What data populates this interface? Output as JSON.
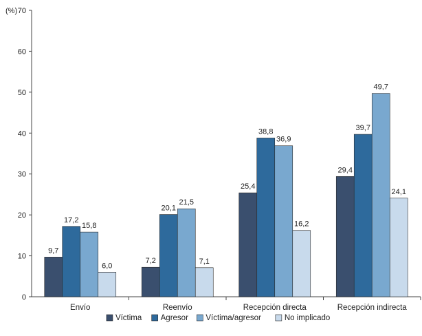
{
  "chart_data": {
    "type": "bar",
    "ylabel": "(%)",
    "ylim": [
      0,
      70
    ],
    "yticks": [
      0,
      10,
      20,
      30,
      40,
      50,
      60,
      70
    ],
    "categories": [
      "Envío",
      "Reenvío",
      "Recepción directa",
      "Recepción indirecta"
    ],
    "series": [
      {
        "name": "Víctima",
        "color": "#3a4f6e",
        "values": [
          9.7,
          7.2,
          25.4,
          29.4
        ],
        "labels": [
          "9,7",
          "7,2",
          "25,4",
          "29,4"
        ]
      },
      {
        "name": "Agresor",
        "color": "#2e6a9c",
        "values": [
          17.2,
          20.1,
          38.8,
          39.7
        ],
        "labels": [
          "17,2",
          "20,1",
          "38,8",
          "39,7"
        ]
      },
      {
        "name": "Víctima/agresor",
        "color": "#79a8cf",
        "values": [
          15.8,
          21.5,
          36.9,
          49.7
        ],
        "labels": [
          "15,8",
          "21,5",
          "36,9",
          "49,7"
        ]
      },
      {
        "name": "No implicado",
        "color": "#c8daec",
        "values": [
          6.0,
          7.1,
          16.2,
          24.1
        ],
        "labels": [
          "6,0",
          "7,1",
          "16,2",
          "24,1"
        ]
      }
    ],
    "legend_position": "bottom",
    "grid": false
  }
}
